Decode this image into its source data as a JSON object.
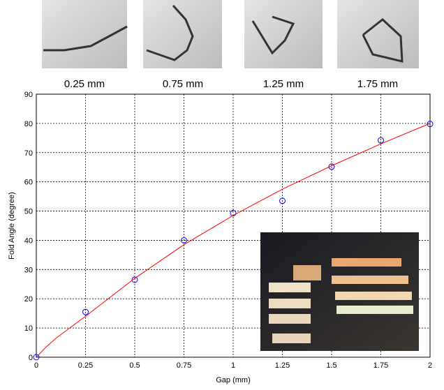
{
  "photos": {
    "captions": [
      "0.25 mm",
      "0.75 mm",
      "1.25 mm",
      "1.75 mm"
    ]
  },
  "chart_data": {
    "type": "scatter",
    "xlabel": "Gap (mm)",
    "ylabel": "Fold Angle (degree)",
    "xlim": [
      0,
      2
    ],
    "ylim": [
      0,
      90
    ],
    "xticks": [
      0,
      0.25,
      0.5,
      0.75,
      1,
      1.25,
      1.5,
      1.75,
      2
    ],
    "yticks": [
      0,
      10,
      20,
      30,
      40,
      50,
      60,
      70,
      80,
      90
    ],
    "grid": true,
    "series": [
      {
        "type": "scatter",
        "color": "#0000ff",
        "x": [
          0,
          0.25,
          0.5,
          0.75,
          1,
          1.25,
          1.5,
          1.75,
          2
        ],
        "values": [
          0,
          15.5,
          26.5,
          40,
          49.3,
          53.5,
          65.2,
          74.2,
          79.8
        ]
      },
      {
        "type": "line",
        "color": "#ff0000",
        "x": [
          0,
          0.05,
          0.1,
          0.25,
          0.5,
          0.75,
          1,
          1.25,
          1.5,
          1.75,
          2
        ],
        "values": [
          0,
          3.5,
          6.5,
          14,
          27,
          38.5,
          48.5,
          57.5,
          65.5,
          73,
          80
        ]
      }
    ]
  }
}
